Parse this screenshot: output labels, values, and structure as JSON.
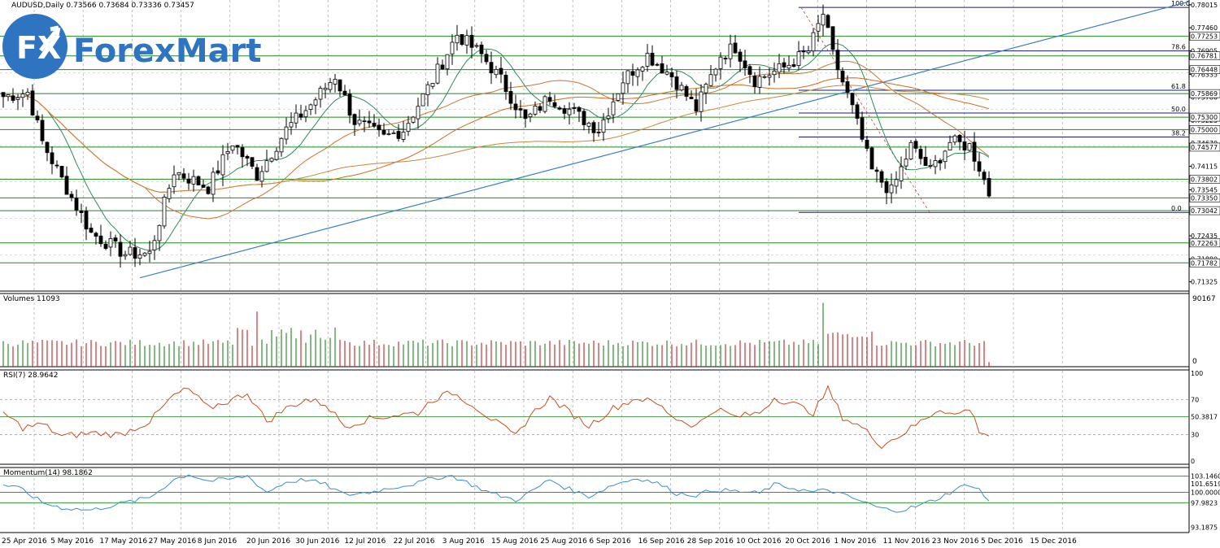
{
  "chart_data": {
    "type": "candlestick",
    "symbol_line": "AUDUSD,Daily  0.73566 0.73684 0.73336 0.73457",
    "brand": {
      "logo_text": "ForexMart",
      "badge_text": "FX",
      "color": "#2f74c0"
    },
    "price_axis_ticks": [
      "0.78015",
      "0.77460",
      "0.76905",
      "0.76335",
      "0.75780",
      "0.75225",
      "0.74670",
      "0.74115",
      "0.73545",
      "0.72435",
      "0.71880",
      "0.71325"
    ],
    "level_labels": [
      {
        "value": 0.77253,
        "text": "0.77253"
      },
      {
        "value": 0.76781,
        "text": "0.76781"
      },
      {
        "value": 0.76448,
        "text": "0.76448"
      },
      {
        "value": 0.75869,
        "text": "0.75869"
      },
      {
        "value": 0.753,
        "text": "0.75300"
      },
      {
        "value": 0.75,
        "text": "0.75000"
      },
      {
        "value": 0.74577,
        "text": "0.74577"
      },
      {
        "value": 0.73802,
        "text": "0.73802"
      },
      {
        "value": 0.7335,
        "text": "0.73350"
      },
      {
        "value": 0.73042,
        "text": "0.73042"
      },
      {
        "value": 0.72263,
        "text": "0.72263"
      },
      {
        "value": 0.71782,
        "text": "0.71782"
      }
    ],
    "fib_levels": [
      {
        "pct": "100.0",
        "value": 0.7795
      },
      {
        "pct": "78.6",
        "value": 0.769
      },
      {
        "pct": "61.8",
        "value": 0.7595
      },
      {
        "pct": "50.0",
        "value": 0.754
      },
      {
        "pct": "38.2",
        "value": 0.7482
      },
      {
        "pct": "0.0",
        "value": 0.73
      }
    ],
    "x_labels": [
      "25 Apr 2016",
      "5 May 2016",
      "17 May 2016",
      "27 May 2016",
      "8 Jun 2016",
      "20 Jun 2016",
      "30 Jun 2016",
      "12 Jul 2016",
      "22 Jul 2016",
      "3 Aug 2016",
      "15 Aug 2016",
      "25 Aug 2016",
      "6 Sep 2016",
      "16 Sep 2016",
      "28 Sep 2016",
      "10 Oct 2016",
      "20 Oct 2016",
      "1 Nov 2016",
      "11 Nov 2016",
      "23 Nov 2016",
      "5 Dec 2016",
      "15 Dec 2016"
    ],
    "price_keypoints": [
      [
        0,
        0.758
      ],
      [
        5,
        0.759
      ],
      [
        8,
        0.747
      ],
      [
        12,
        0.738
      ],
      [
        18,
        0.725
      ],
      [
        25,
        0.72
      ],
      [
        30,
        0.72
      ],
      [
        35,
        0.74
      ],
      [
        42,
        0.736
      ],
      [
        47,
        0.747
      ],
      [
        52,
        0.739
      ],
      [
        58,
        0.75
      ],
      [
        63,
        0.756
      ],
      [
        68,
        0.763
      ],
      [
        72,
        0.752
      ],
      [
        78,
        0.748
      ],
      [
        82,
        0.75
      ],
      [
        88,
        0.762
      ],
      [
        93,
        0.773
      ],
      [
        98,
        0.768
      ],
      [
        102,
        0.762
      ],
      [
        107,
        0.752
      ],
      [
        112,
        0.758
      ],
      [
        117,
        0.754
      ],
      [
        122,
        0.75
      ],
      [
        127,
        0.762
      ],
      [
        132,
        0.768
      ],
      [
        137,
        0.763
      ],
      [
        142,
        0.755
      ],
      [
        147,
        0.768
      ],
      [
        150,
        0.77
      ],
      [
        154,
        0.762
      ],
      [
        160,
        0.765
      ],
      [
        165,
        0.769
      ],
      [
        168,
        0.778
      ],
      [
        170,
        0.768
      ],
      [
        174,
        0.755
      ],
      [
        178,
        0.74
      ],
      [
        182,
        0.735
      ],
      [
        186,
        0.746
      ],
      [
        190,
        0.74
      ],
      [
        194,
        0.747
      ],
      [
        198,
        0.746
      ],
      [
        200,
        0.741
      ],
      [
        202,
        0.7346
      ]
    ],
    "volume_panel": {
      "label": "Volumes 11093",
      "max_label": "90167",
      "min_label": "0"
    },
    "rsi_panel": {
      "label": "RSI(7) 28.9642",
      "ticks": [
        "100",
        "70",
        "50.3817",
        "30",
        "0"
      ],
      "levels": [
        70,
        50.3817,
        30
      ]
    },
    "rsi_keypoints": [
      [
        0,
        55
      ],
      [
        4,
        38
      ],
      [
        8,
        42
      ],
      [
        12,
        28
      ],
      [
        18,
        32
      ],
      [
        24,
        30
      ],
      [
        30,
        45
      ],
      [
        35,
        75
      ],
      [
        38,
        82
      ],
      [
        42,
        60
      ],
      [
        47,
        70
      ],
      [
        50,
        78
      ],
      [
        54,
        45
      ],
      [
        58,
        60
      ],
      [
        62,
        70
      ],
      [
        66,
        65
      ],
      [
        70,
        40
      ],
      [
        75,
        48
      ],
      [
        80,
        52
      ],
      [
        85,
        55
      ],
      [
        88,
        70
      ],
      [
        92,
        78
      ],
      [
        96,
        65
      ],
      [
        100,
        48
      ],
      [
        105,
        28
      ],
      [
        108,
        52
      ],
      [
        112,
        72
      ],
      [
        115,
        60
      ],
      [
        120,
        40
      ],
      [
        125,
        60
      ],
      [
        130,
        72
      ],
      [
        134,
        65
      ],
      [
        138,
        48
      ],
      [
        142,
        40
      ],
      [
        146,
        60
      ],
      [
        150,
        50
      ],
      [
        155,
        55
      ],
      [
        158,
        72
      ],
      [
        162,
        65
      ],
      [
        166,
        55
      ],
      [
        169,
        82
      ],
      [
        172,
        50
      ],
      [
        176,
        38
      ],
      [
        180,
        18
      ],
      [
        184,
        30
      ],
      [
        188,
        45
      ],
      [
        192,
        60
      ],
      [
        195,
        52
      ],
      [
        198,
        60
      ],
      [
        200,
        35
      ],
      [
        202,
        29
      ]
    ],
    "momentum_panel": {
      "label": "Momentum(14) 98.1862",
      "ticks": [
        "101.6519",
        "103.1460",
        "100.0000",
        "97.9823",
        "93.1875"
      ],
      "levels": [
        103.146,
        100.0,
        97.9823
      ]
    },
    "momentum_keypoints": [
      [
        0,
        101.5
      ],
      [
        4,
        100.5
      ],
      [
        8,
        98.0
      ],
      [
        12,
        97.0
      ],
      [
        18,
        96.5
      ],
      [
        24,
        97.8
      ],
      [
        30,
        99.0
      ],
      [
        35,
        102.5
      ],
      [
        38,
        103.5
      ],
      [
        42,
        102.2
      ],
      [
        47,
        102.6
      ],
      [
        50,
        103.2
      ],
      [
        54,
        100.0
      ],
      [
        58,
        102.0
      ],
      [
        62,
        102.5
      ],
      [
        66,
        101.5
      ],
      [
        70,
        99.5
      ],
      [
        75,
        100.0
      ],
      [
        80,
        101.0
      ],
      [
        85,
        101.8
      ],
      [
        88,
        102.8
      ],
      [
        92,
        103.2
      ],
      [
        96,
        101.5
      ],
      [
        100,
        99.8
      ],
      [
        105,
        98.5
      ],
      [
        108,
        100.0
      ],
      [
        112,
        102.5
      ],
      [
        115,
        101.0
      ],
      [
        120,
        99.2
      ],
      [
        125,
        101.5
      ],
      [
        130,
        102.8
      ],
      [
        134,
        101.8
      ],
      [
        138,
        99.8
      ],
      [
        142,
        99.5
      ],
      [
        146,
        100.5
      ],
      [
        150,
        100.2
      ],
      [
        155,
        99.8
      ],
      [
        158,
        101.5
      ],
      [
        162,
        100.8
      ],
      [
        166,
        100.0
      ],
      [
        169,
        100.5
      ],
      [
        172,
        99.5
      ],
      [
        176,
        98.2
      ],
      [
        180,
        96.8
      ],
      [
        184,
        96.5
      ],
      [
        188,
        97.5
      ],
      [
        192,
        99.0
      ],
      [
        195,
        100.5
      ],
      [
        198,
        101.6
      ],
      [
        200,
        100.5
      ],
      [
        202,
        98.2
      ]
    ],
    "colors": {
      "bull": "#ffffff",
      "bear": "#000000",
      "level_line": "#1a8a1a",
      "fib_line": "#1a1a80",
      "trend_line": "#3a7fc1",
      "ma_fast": "#2e8b57",
      "ma_mid": "#c87533",
      "ma_slow": "#d2691e",
      "ma_long": "#cd853f",
      "rsi_line": "#c8501e",
      "momentum_line": "#3a8fd0",
      "volume_up": "#2e8b2e",
      "volume_down": "#c83232"
    }
  }
}
